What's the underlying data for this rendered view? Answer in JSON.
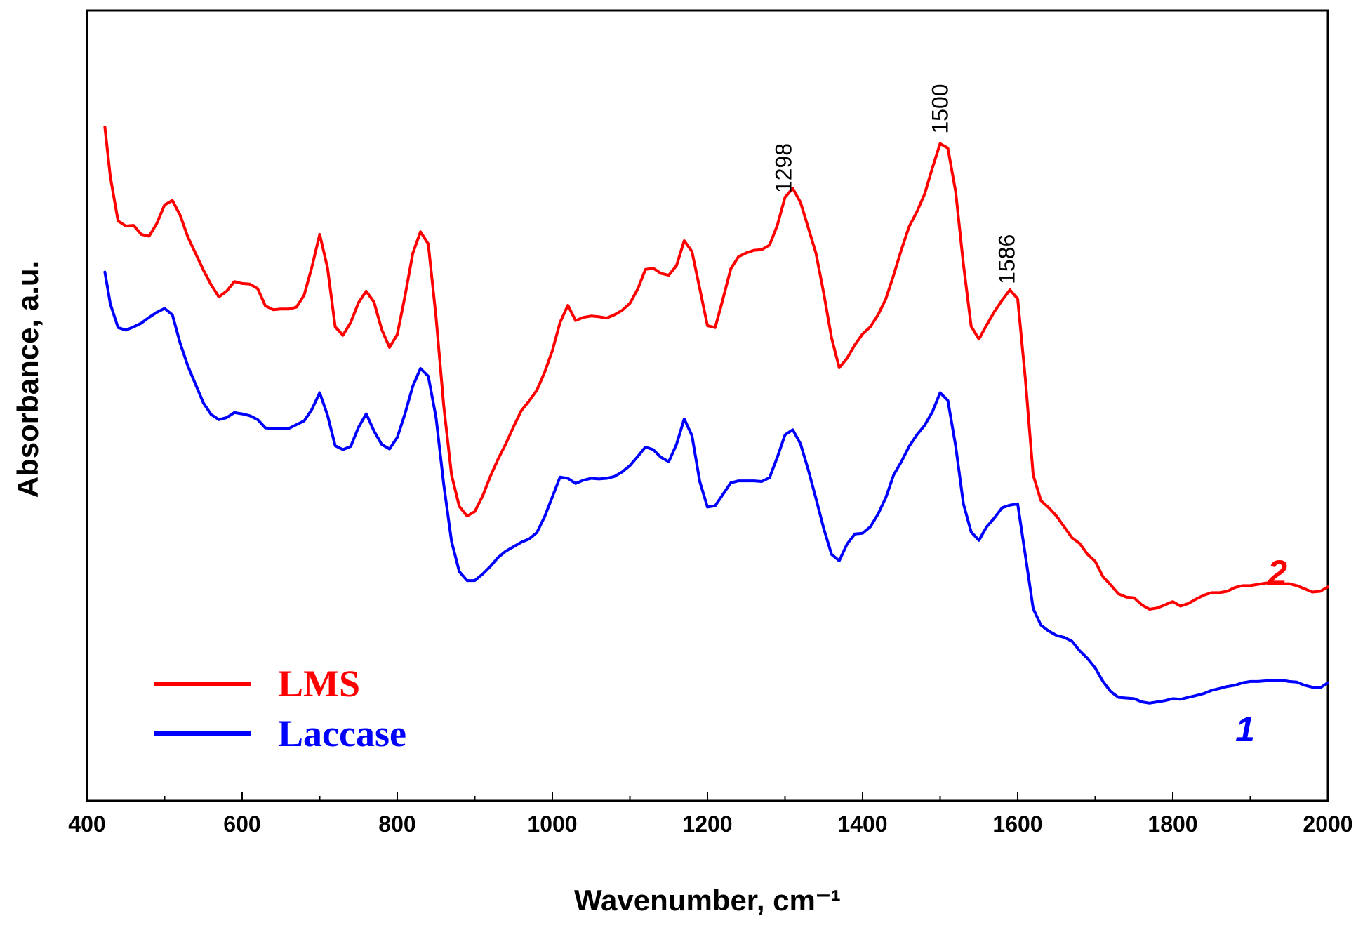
{
  "chart_data": {
    "type": "line",
    "title": "",
    "xlabel": "Wavenumber, cm⁻¹",
    "ylabel": "Absorbance, a.u.",
    "xlim": [
      400,
      2000
    ],
    "ylim": [
      0,
      100
    ],
    "x_ticks": [
      400,
      600,
      800,
      1000,
      1200,
      1400,
      1600,
      1800,
      2000
    ],
    "y_ticks_shown": false,
    "grid": false,
    "legend_position": "bottom-left",
    "series": [
      {
        "name": "LMS",
        "label": "2",
        "color": "#ff0000",
        "points": [
          [
            423,
            92.2
          ],
          [
            430,
            84.4
          ],
          [
            440,
            77.5
          ],
          [
            450,
            76.7
          ],
          [
            460,
            76.8
          ],
          [
            470,
            75.4
          ],
          [
            480,
            75.1
          ],
          [
            490,
            77.1
          ],
          [
            500,
            80.0
          ],
          [
            510,
            80.7
          ],
          [
            520,
            78.4
          ],
          [
            530,
            75.0
          ],
          [
            540,
            72.4
          ],
          [
            550,
            69.8
          ],
          [
            560,
            67.5
          ],
          [
            570,
            65.6
          ],
          [
            580,
            66.5
          ],
          [
            590,
            68.0
          ],
          [
            600,
            67.7
          ],
          [
            610,
            67.6
          ],
          [
            620,
            66.9
          ],
          [
            630,
            64.2
          ],
          [
            640,
            63.6
          ],
          [
            650,
            63.7
          ],
          [
            660,
            63.7
          ],
          [
            670,
            64.0
          ],
          [
            680,
            65.9
          ],
          [
            690,
            70.3
          ],
          [
            700,
            75.4
          ],
          [
            710,
            70.2
          ],
          [
            720,
            60.9
          ],
          [
            730,
            59.6
          ],
          [
            740,
            61.6
          ],
          [
            750,
            64.7
          ],
          [
            760,
            66.5
          ],
          [
            770,
            64.8
          ],
          [
            780,
            60.5
          ],
          [
            790,
            57.7
          ],
          [
            800,
            59.7
          ],
          [
            810,
            65.7
          ],
          [
            820,
            72.4
          ],
          [
            830,
            75.8
          ],
          [
            840,
            73.9
          ],
          [
            850,
            62.4
          ],
          [
            860,
            48.5
          ],
          [
            870,
            37.7
          ],
          [
            880,
            32.8
          ],
          [
            890,
            31.3
          ],
          [
            900,
            32.0
          ],
          [
            910,
            34.4
          ],
          [
            920,
            37.5
          ],
          [
            930,
            40.2
          ],
          [
            940,
            42.6
          ],
          [
            950,
            45.3
          ],
          [
            960,
            47.8
          ],
          [
            970,
            49.3
          ],
          [
            980,
            51.0
          ],
          [
            990,
            53.8
          ],
          [
            1000,
            57.2
          ],
          [
            1010,
            61.6
          ],
          [
            1020,
            64.3
          ],
          [
            1030,
            61.9
          ],
          [
            1040,
            62.4
          ],
          [
            1050,
            62.6
          ],
          [
            1060,
            62.5
          ],
          [
            1070,
            62.3
          ],
          [
            1080,
            62.8
          ],
          [
            1090,
            63.5
          ],
          [
            1100,
            64.6
          ],
          [
            1110,
            66.8
          ],
          [
            1120,
            69.9
          ],
          [
            1130,
            70.1
          ],
          [
            1140,
            69.3
          ],
          [
            1150,
            69.0
          ],
          [
            1160,
            70.5
          ],
          [
            1170,
            74.4
          ],
          [
            1180,
            72.7
          ],
          [
            1190,
            66.9
          ],
          [
            1200,
            61.1
          ],
          [
            1210,
            60.8
          ],
          [
            1220,
            65.3
          ],
          [
            1230,
            70.0
          ],
          [
            1240,
            71.9
          ],
          [
            1250,
            72.5
          ],
          [
            1260,
            72.9
          ],
          [
            1270,
            73.0
          ],
          [
            1280,
            73.7
          ],
          [
            1290,
            76.8
          ],
          [
            1300,
            81.2
          ],
          [
            1310,
            82.6
          ],
          [
            1320,
            80.4
          ],
          [
            1330,
            76.4
          ],
          [
            1340,
            72.4
          ],
          [
            1350,
            66.1
          ],
          [
            1360,
            59.2
          ],
          [
            1370,
            54.5
          ],
          [
            1380,
            56.0
          ],
          [
            1390,
            58.1
          ],
          [
            1400,
            59.8
          ],
          [
            1410,
            60.9
          ],
          [
            1420,
            62.8
          ],
          [
            1430,
            65.3
          ],
          [
            1440,
            69.0
          ],
          [
            1450,
            73.0
          ],
          [
            1460,
            76.6
          ],
          [
            1470,
            78.9
          ],
          [
            1480,
            81.7
          ],
          [
            1490,
            85.8
          ],
          [
            1500,
            89.6
          ],
          [
            1510,
            88.9
          ],
          [
            1520,
            82.1
          ],
          [
            1530,
            70.7
          ],
          [
            1540,
            61.0
          ],
          [
            1550,
            59.0
          ],
          [
            1560,
            61.2
          ],
          [
            1570,
            63.3
          ],
          [
            1580,
            65.1
          ],
          [
            1590,
            66.7
          ],
          [
            1600,
            65.3
          ],
          [
            1610,
            52.7
          ],
          [
            1620,
            37.7
          ],
          [
            1630,
            33.7
          ],
          [
            1640,
            32.6
          ],
          [
            1650,
            31.3
          ],
          [
            1660,
            29.6
          ],
          [
            1670,
            27.9
          ],
          [
            1680,
            27.0
          ],
          [
            1690,
            25.3
          ],
          [
            1700,
            24.2
          ],
          [
            1710,
            21.8
          ],
          [
            1720,
            20.5
          ],
          [
            1730,
            19.1
          ],
          [
            1740,
            18.6
          ],
          [
            1750,
            18.5
          ],
          [
            1760,
            17.4
          ],
          [
            1770,
            16.7
          ],
          [
            1780,
            16.9
          ],
          [
            1790,
            17.4
          ],
          [
            1800,
            17.9
          ],
          [
            1810,
            17.2
          ],
          [
            1820,
            17.6
          ],
          [
            1830,
            18.3
          ],
          [
            1840,
            18.9
          ],
          [
            1850,
            19.3
          ],
          [
            1860,
            19.3
          ],
          [
            1870,
            19.5
          ],
          [
            1880,
            20.1
          ],
          [
            1890,
            20.4
          ],
          [
            1900,
            20.4
          ],
          [
            1910,
            20.6
          ],
          [
            1920,
            20.8
          ],
          [
            1930,
            20.9
          ],
          [
            1940,
            20.7
          ],
          [
            1950,
            20.7
          ],
          [
            1960,
            20.4
          ],
          [
            1970,
            19.9
          ],
          [
            1980,
            19.4
          ],
          [
            1990,
            19.5
          ],
          [
            2000,
            20.2
          ]
        ]
      },
      {
        "name": "Laccase",
        "label": "1",
        "color": "#0000ff",
        "points": [
          [
            423,
            69.5
          ],
          [
            430,
            64.5
          ],
          [
            440,
            60.8
          ],
          [
            450,
            60.4
          ],
          [
            460,
            60.9
          ],
          [
            470,
            61.5
          ],
          [
            480,
            62.4
          ],
          [
            490,
            63.2
          ],
          [
            500,
            63.8
          ],
          [
            510,
            62.8
          ],
          [
            520,
            58.4
          ],
          [
            530,
            54.8
          ],
          [
            540,
            51.9
          ],
          [
            550,
            49.0
          ],
          [
            560,
            47.2
          ],
          [
            570,
            46.4
          ],
          [
            580,
            46.7
          ],
          [
            590,
            47.5
          ],
          [
            600,
            47.3
          ],
          [
            610,
            47.0
          ],
          [
            620,
            46.4
          ],
          [
            630,
            45.1
          ],
          [
            640,
            45.0
          ],
          [
            650,
            45.0
          ],
          [
            660,
            45.0
          ],
          [
            670,
            45.6
          ],
          [
            680,
            46.2
          ],
          [
            690,
            48.0
          ],
          [
            700,
            50.6
          ],
          [
            710,
            47.1
          ],
          [
            720,
            42.3
          ],
          [
            730,
            41.7
          ],
          [
            740,
            42.2
          ],
          [
            750,
            45.2
          ],
          [
            760,
            47.3
          ],
          [
            770,
            44.6
          ],
          [
            780,
            42.5
          ],
          [
            790,
            41.8
          ],
          [
            800,
            43.6
          ],
          [
            810,
            47.3
          ],
          [
            820,
            51.6
          ],
          [
            830,
            54.4
          ],
          [
            840,
            53.2
          ],
          [
            850,
            46.7
          ],
          [
            860,
            36.2
          ],
          [
            870,
            27.3
          ],
          [
            880,
            22.6
          ],
          [
            890,
            21.2
          ],
          [
            900,
            21.2
          ],
          [
            910,
            22.2
          ],
          [
            920,
            23.4
          ],
          [
            930,
            24.8
          ],
          [
            940,
            25.8
          ],
          [
            950,
            26.5
          ],
          [
            960,
            27.2
          ],
          [
            970,
            27.7
          ],
          [
            980,
            28.7
          ],
          [
            990,
            31.2
          ],
          [
            1000,
            34.3
          ],
          [
            1010,
            37.4
          ],
          [
            1020,
            37.2
          ],
          [
            1030,
            36.4
          ],
          [
            1040,
            36.9
          ],
          [
            1050,
            37.2
          ],
          [
            1060,
            37.1
          ],
          [
            1070,
            37.2
          ],
          [
            1080,
            37.5
          ],
          [
            1090,
            38.2
          ],
          [
            1100,
            39.2
          ],
          [
            1110,
            40.6
          ],
          [
            1120,
            42.1
          ],
          [
            1130,
            41.7
          ],
          [
            1140,
            40.5
          ],
          [
            1150,
            39.8
          ],
          [
            1160,
            42.5
          ],
          [
            1170,
            46.5
          ],
          [
            1180,
            43.9
          ],
          [
            1190,
            36.7
          ],
          [
            1200,
            32.7
          ],
          [
            1210,
            32.9
          ],
          [
            1220,
            34.7
          ],
          [
            1230,
            36.5
          ],
          [
            1240,
            36.8
          ],
          [
            1250,
            36.8
          ],
          [
            1260,
            36.8
          ],
          [
            1270,
            36.7
          ],
          [
            1280,
            37.3
          ],
          [
            1290,
            40.5
          ],
          [
            1300,
            44.0
          ],
          [
            1310,
            44.8
          ],
          [
            1320,
            42.6
          ],
          [
            1330,
            38.5
          ],
          [
            1340,
            34.0
          ],
          [
            1350,
            29.3
          ],
          [
            1360,
            25.3
          ],
          [
            1370,
            24.3
          ],
          [
            1380,
            26.9
          ],
          [
            1390,
            28.5
          ],
          [
            1400,
            28.6
          ],
          [
            1410,
            29.6
          ],
          [
            1420,
            31.6
          ],
          [
            1430,
            34.2
          ],
          [
            1440,
            37.7
          ],
          [
            1450,
            39.8
          ],
          [
            1460,
            42.2
          ],
          [
            1470,
            44.0
          ],
          [
            1480,
            45.5
          ],
          [
            1490,
            47.6
          ],
          [
            1500,
            50.6
          ],
          [
            1510,
            49.4
          ],
          [
            1520,
            42.3
          ],
          [
            1530,
            33.2
          ],
          [
            1540,
            28.8
          ],
          [
            1550,
            27.5
          ],
          [
            1560,
            29.6
          ],
          [
            1570,
            31.0
          ],
          [
            1580,
            32.6
          ],
          [
            1590,
            33.0
          ],
          [
            1600,
            33.2
          ],
          [
            1610,
            25.1
          ],
          [
            1620,
            16.8
          ],
          [
            1630,
            14.2
          ],
          [
            1640,
            13.3
          ],
          [
            1650,
            12.6
          ],
          [
            1660,
            12.3
          ],
          [
            1670,
            11.7
          ],
          [
            1680,
            10.2
          ],
          [
            1690,
            9.0
          ],
          [
            1700,
            7.5
          ],
          [
            1710,
            5.4
          ],
          [
            1720,
            3.8
          ],
          [
            1730,
            2.9
          ],
          [
            1740,
            2.8
          ],
          [
            1750,
            2.7
          ],
          [
            1760,
            2.2
          ],
          [
            1770,
            2.0
          ],
          [
            1780,
            2.2
          ],
          [
            1790,
            2.4
          ],
          [
            1800,
            2.7
          ],
          [
            1810,
            2.6
          ],
          [
            1820,
            2.9
          ],
          [
            1830,
            3.2
          ],
          [
            1840,
            3.5
          ],
          [
            1850,
            4.0
          ],
          [
            1860,
            4.3
          ],
          [
            1870,
            4.6
          ],
          [
            1880,
            4.8
          ],
          [
            1890,
            5.2
          ],
          [
            1900,
            5.4
          ],
          [
            1910,
            5.4
          ],
          [
            1920,
            5.5
          ],
          [
            1930,
            5.6
          ],
          [
            1940,
            5.6
          ],
          [
            1950,
            5.4
          ],
          [
            1960,
            5.3
          ],
          [
            1970,
            4.8
          ],
          [
            1980,
            4.5
          ],
          [
            1990,
            4.4
          ],
          [
            2000,
            5.2
          ]
        ]
      }
    ],
    "annotations": [
      {
        "text": "1298",
        "x": 1298
      },
      {
        "text": "1500",
        "x": 1500
      },
      {
        "text": "1586",
        "x": 1586
      }
    ]
  }
}
